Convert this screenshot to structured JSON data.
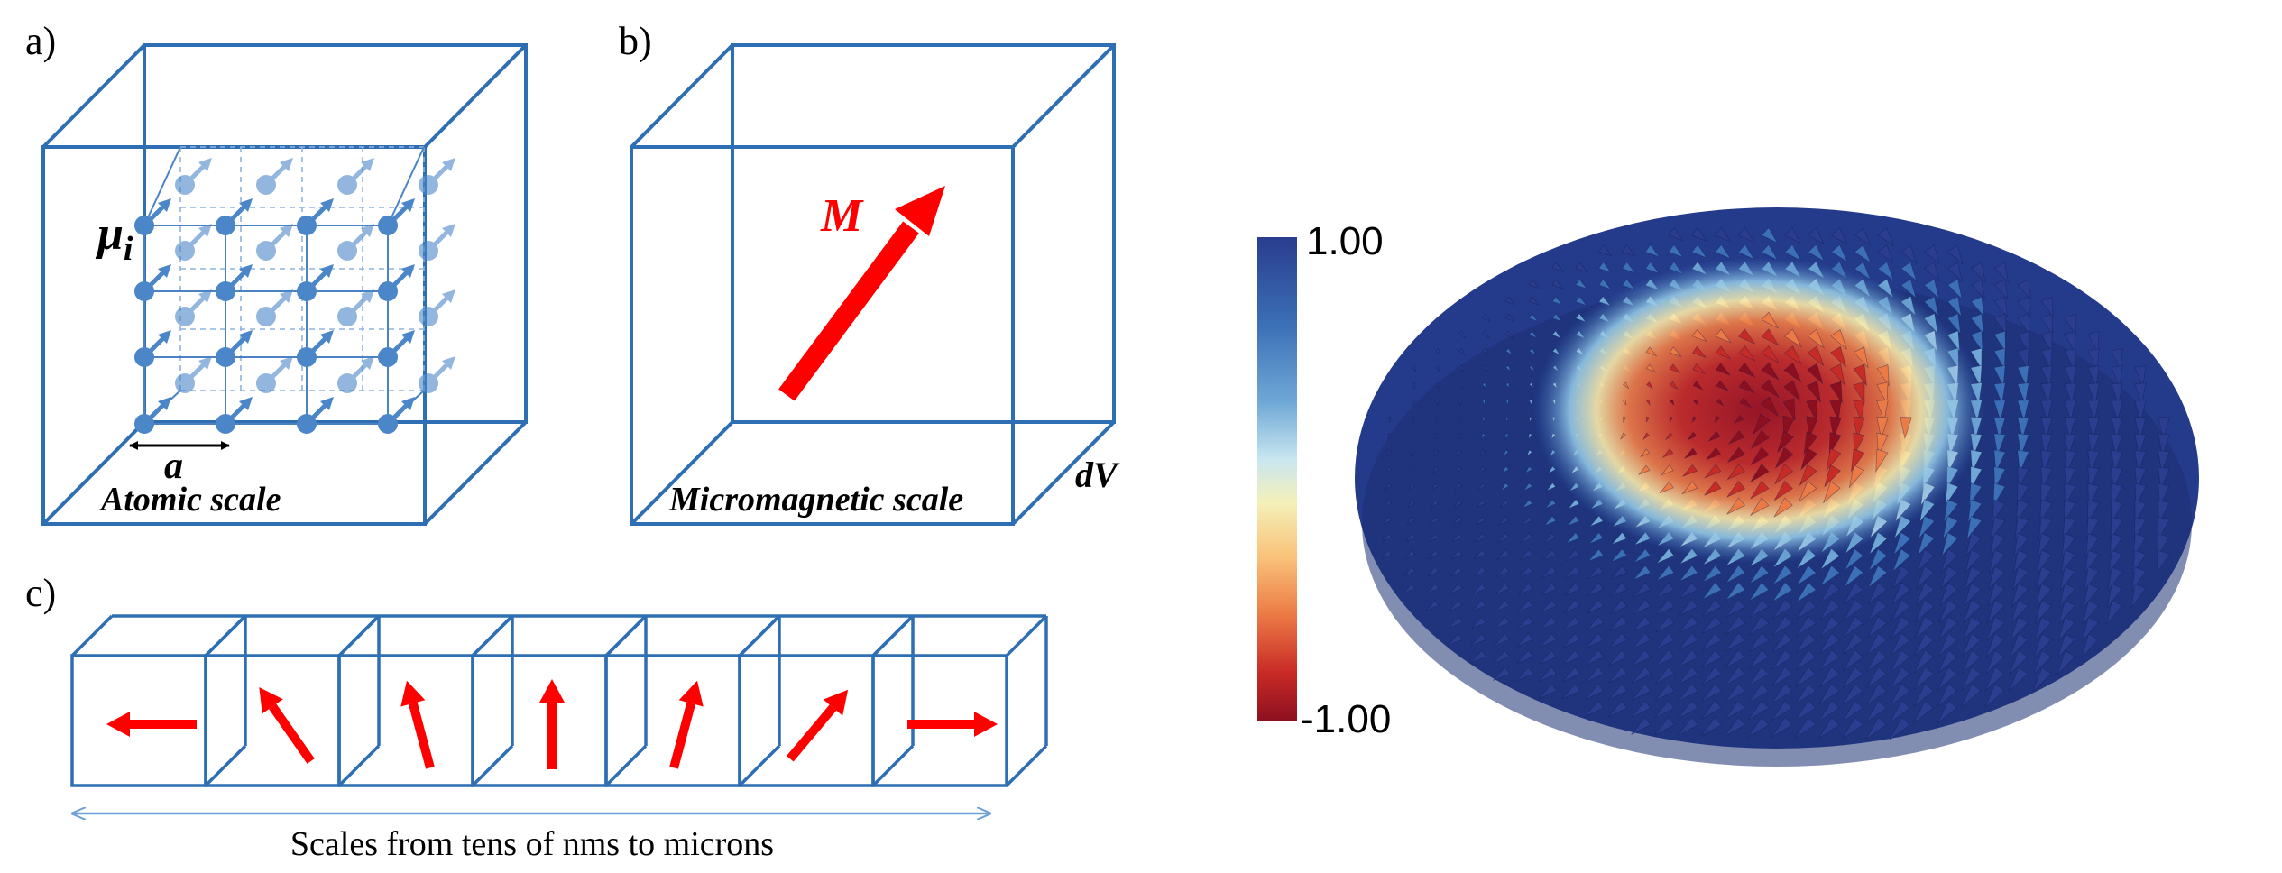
{
  "panels": {
    "a": {
      "label": "a)",
      "moment_symbol": "μ",
      "moment_subscript": "i",
      "spacing_symbol": "a",
      "scale_label": "Atomic scale"
    },
    "b": {
      "label": "b)",
      "vector_symbol": "M",
      "volume_symbol": "dV",
      "scale_label": "Micromagnetic scale"
    },
    "c": {
      "label": "c)",
      "caption": "Scales from tens of nms to microns",
      "arrow_angles_deg": [
        180,
        125,
        105,
        90,
        75,
        50,
        0
      ]
    },
    "skyrmion": {
      "colorbar_max": "1.00",
      "colorbar_min": "-1.00",
      "colors": [
        "#2a3d8f",
        "#3b6fb6",
        "#6fa8d6",
        "#c9e6f0",
        "#f5f0b8",
        "#f9c27a",
        "#ec7a45",
        "#c82a26",
        "#8c0f1f"
      ]
    }
  },
  "colors": {
    "cube_edge": "#2e6fb4",
    "arrow_red": "#ff0000",
    "moment_blue": "#4a86c8"
  }
}
